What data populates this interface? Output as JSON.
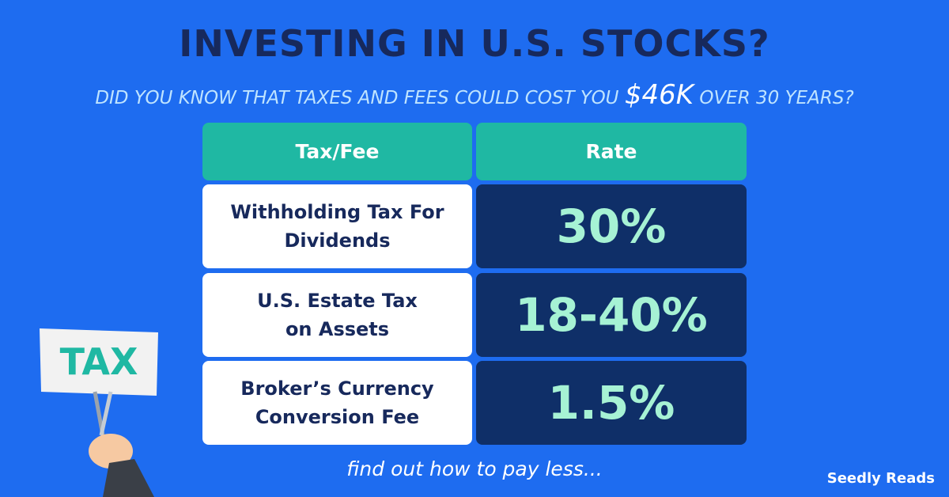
{
  "header": {
    "title": "INVESTING IN U.S. STOCKS?",
    "subtitle": {
      "before": "DID YOU KNOW THAT TAXES AND FEES COULD COST YOU",
      "highlight": "$46K",
      "after": "OVER 30 YEARS?"
    }
  },
  "table": {
    "headers": [
      "Tax/Fee",
      "Rate"
    ],
    "rows": [
      [
        [
          "Withholding Tax For",
          "Dividends"
        ],
        "30%"
      ],
      [
        [
          "U.S. Estate Tax",
          "on Assets"
        ],
        "18-40%"
      ],
      [
        [
          "Broker’s Currency",
          "Conversion Fee"
        ],
        "1.5%"
      ]
    ]
  },
  "illustration": {
    "sign": "TAX"
  },
  "footer": {
    "cta": "find out how to pay less...",
    "brand": "Seedly Reads"
  }
}
